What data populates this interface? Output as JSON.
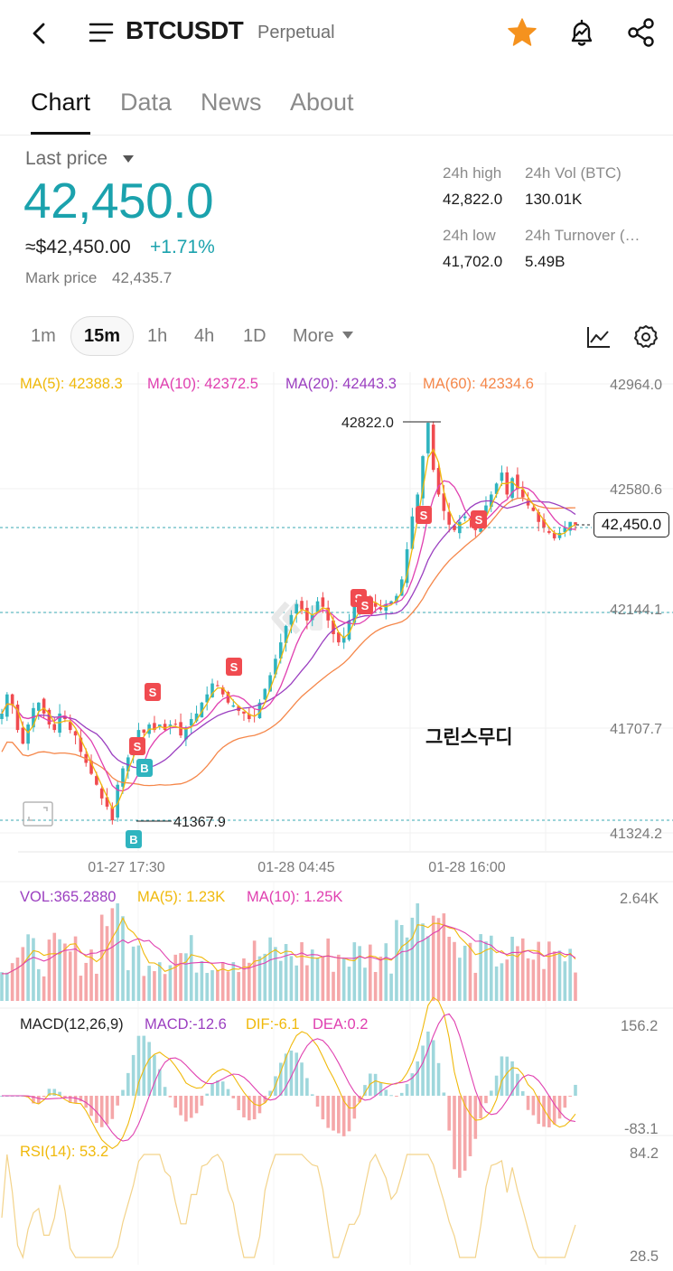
{
  "header": {
    "pair": "BTCUSDT",
    "type": "Perpetual"
  },
  "tabs": [
    "Chart",
    "Data",
    "News",
    "About"
  ],
  "price": {
    "last_label": "Last price",
    "last": "42,450.0",
    "usd": "≈$42,450.00",
    "change": "+1.71%",
    "mark_label": "Mark price",
    "mark": "42,435.7"
  },
  "stats": {
    "high_label": "24h high",
    "high": "42,822.0",
    "vol_label": "24h Vol (BTC)",
    "vol": "130.01K",
    "low_label": "24h low",
    "low": "41,702.0",
    "turnover_label": "24h Turnover (…",
    "turnover": "5.49B"
  },
  "intervals": [
    "1m",
    "15m",
    "1h",
    "4h",
    "1D",
    "More"
  ],
  "active_interval": "15m",
  "ma_legend": {
    "ma5": "MA(5): 42388.3",
    "ma10": "MA(10): 42372.5",
    "ma20": "MA(20): 42443.3",
    "ma60": "MA(60): 42334.6"
  },
  "price_axis": [
    "42964.0",
    "42580.6",
    "42144.1",
    "41707.7",
    "41324.2"
  ],
  "time_axis": [
    "01-27 17:30",
    "01-28 04:45",
    "01-28 16:00"
  ],
  "annotations": {
    "high": "42822.0",
    "low": "41367.9",
    "current_tag": "42,450.0",
    "watermark_text": "그린스무디",
    "sell_marker": "S",
    "buy_marker": "B"
  },
  "volume": {
    "vol": "VOL:365.2880",
    "ma5": "MA(5): 1.23K",
    "ma10": "MA(10): 1.25K",
    "axis_max": "2.64K"
  },
  "macd": {
    "label": "MACD(12,26,9)",
    "macd": "MACD:-12.6",
    "dif": "DIF:-6.1",
    "dea": "DEA:0.2",
    "axis_max": "156.2",
    "axis_min": "-83.1"
  },
  "rsi": {
    "label": "RSI(14): 53.2",
    "axis_max": "84.2",
    "axis_min": "28.5"
  },
  "colors": {
    "up": "#2fb4bf",
    "down": "#f04b50",
    "accent": "#1ba2ad",
    "ma5": "#f0b90b",
    "ma10": "#e040b0",
    "ma20": "#9b3fc0",
    "ma60": "#f5874a",
    "star": "#f5921e"
  },
  "chart_data": {
    "type": "candlestick",
    "ylim": [
      41324.2,
      42964.0
    ],
    "close_path": [
      41760,
      41830,
      41790,
      41700,
      41650,
      41720,
      41780,
      41800,
      41760,
      41720,
      41700,
      41760,
      41740,
      41700,
      41680,
      41620,
      41580,
      41540,
      41500,
      41450,
      41420,
      41370,
      41500,
      41560,
      41600,
      41640,
      41700,
      41690,
      41720,
      41700,
      41720,
      41700,
      41720,
      41720,
      41680,
      41710,
      41740,
      41760,
      41800,
      41830,
      41870,
      41860,
      41830,
      41800,
      41790,
      41770,
      41760,
      41740,
      41750,
      41800,
      41850,
      41900,
      41960,
      42020,
      42080,
      42120,
      42160,
      42140,
      42100,
      42120,
      42170,
      42150,
      42100,
      42050,
      42020,
      42040,
      42100,
      42150,
      42160,
      42180,
      42170,
      42150,
      42140,
      42160,
      42170,
      42190,
      42250,
      42360,
      42480,
      42560,
      42700,
      42822,
      42650,
      42560,
      42500,
      42450,
      42430,
      42460,
      42480,
      42470,
      42430,
      42480,
      42520,
      42560,
      42600,
      42640,
      42560,
      42620,
      42580,
      42550,
      42520,
      42500,
      42460,
      42440,
      42420,
      42400,
      42420,
      42440,
      42460,
      42450
    ]
  }
}
